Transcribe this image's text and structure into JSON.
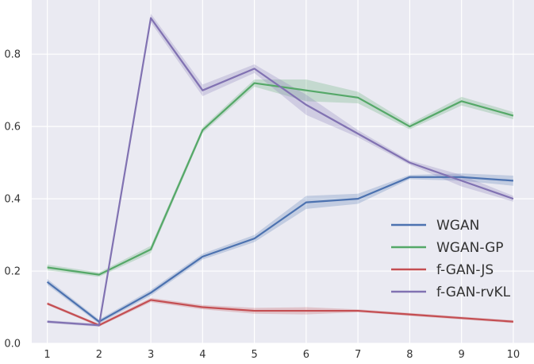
{
  "chart_data": {
    "type": "line",
    "title": "",
    "xlabel": "",
    "ylabel": "",
    "x": [
      1,
      2,
      3,
      4,
      5,
      6,
      7,
      8,
      9,
      10
    ],
    "xlim": [
      0.7,
      10.4
    ],
    "ylim": [
      0.0,
      0.95
    ],
    "xticks": [
      "1",
      "2",
      "3",
      "4",
      "5",
      "6",
      "7",
      "8",
      "9",
      "10"
    ],
    "yticks": [
      "0.0",
      "0.2",
      "0.4",
      "0.6",
      "0.8"
    ],
    "grid": true,
    "legend_position": "bottom-right",
    "background": "#eaeaf2",
    "series": [
      {
        "name": "WGAN",
        "color": "#4c72b0",
        "values": [
          0.17,
          0.06,
          0.14,
          0.24,
          0.29,
          0.39,
          0.4,
          0.46,
          0.46,
          0.45
        ],
        "band": [
          0.008,
          0.006,
          0.008,
          0.008,
          0.01,
          0.018,
          0.014,
          0.006,
          0.01,
          0.014
        ]
      },
      {
        "name": "WGAN-GP",
        "color": "#55a868",
        "values": [
          0.21,
          0.19,
          0.26,
          0.59,
          0.72,
          0.7,
          0.68,
          0.6,
          0.67,
          0.63
        ],
        "band": [
          0.008,
          0.006,
          0.01,
          0.008,
          0.01,
          0.03,
          0.016,
          0.008,
          0.012,
          0.01
        ]
      },
      {
        "name": "f-GAN-JS",
        "color": "#c44e52",
        "values": [
          0.11,
          0.05,
          0.12,
          0.1,
          0.09,
          0.09,
          0.09,
          0.08,
          0.07,
          0.06
        ],
        "band": [
          0.004,
          0.004,
          0.006,
          0.006,
          0.008,
          0.01,
          0.004,
          0.004,
          0.004,
          0.004
        ]
      },
      {
        "name": "f-GAN-rvKL",
        "color": "#8172b2",
        "values": [
          0.06,
          0.05,
          0.9,
          0.7,
          0.76,
          0.66,
          0.58,
          0.5,
          0.45,
          0.4
        ],
        "band": [
          0.004,
          0.004,
          0.012,
          0.016,
          0.012,
          0.028,
          0.01,
          0.006,
          0.016,
          0.008
        ]
      }
    ]
  }
}
